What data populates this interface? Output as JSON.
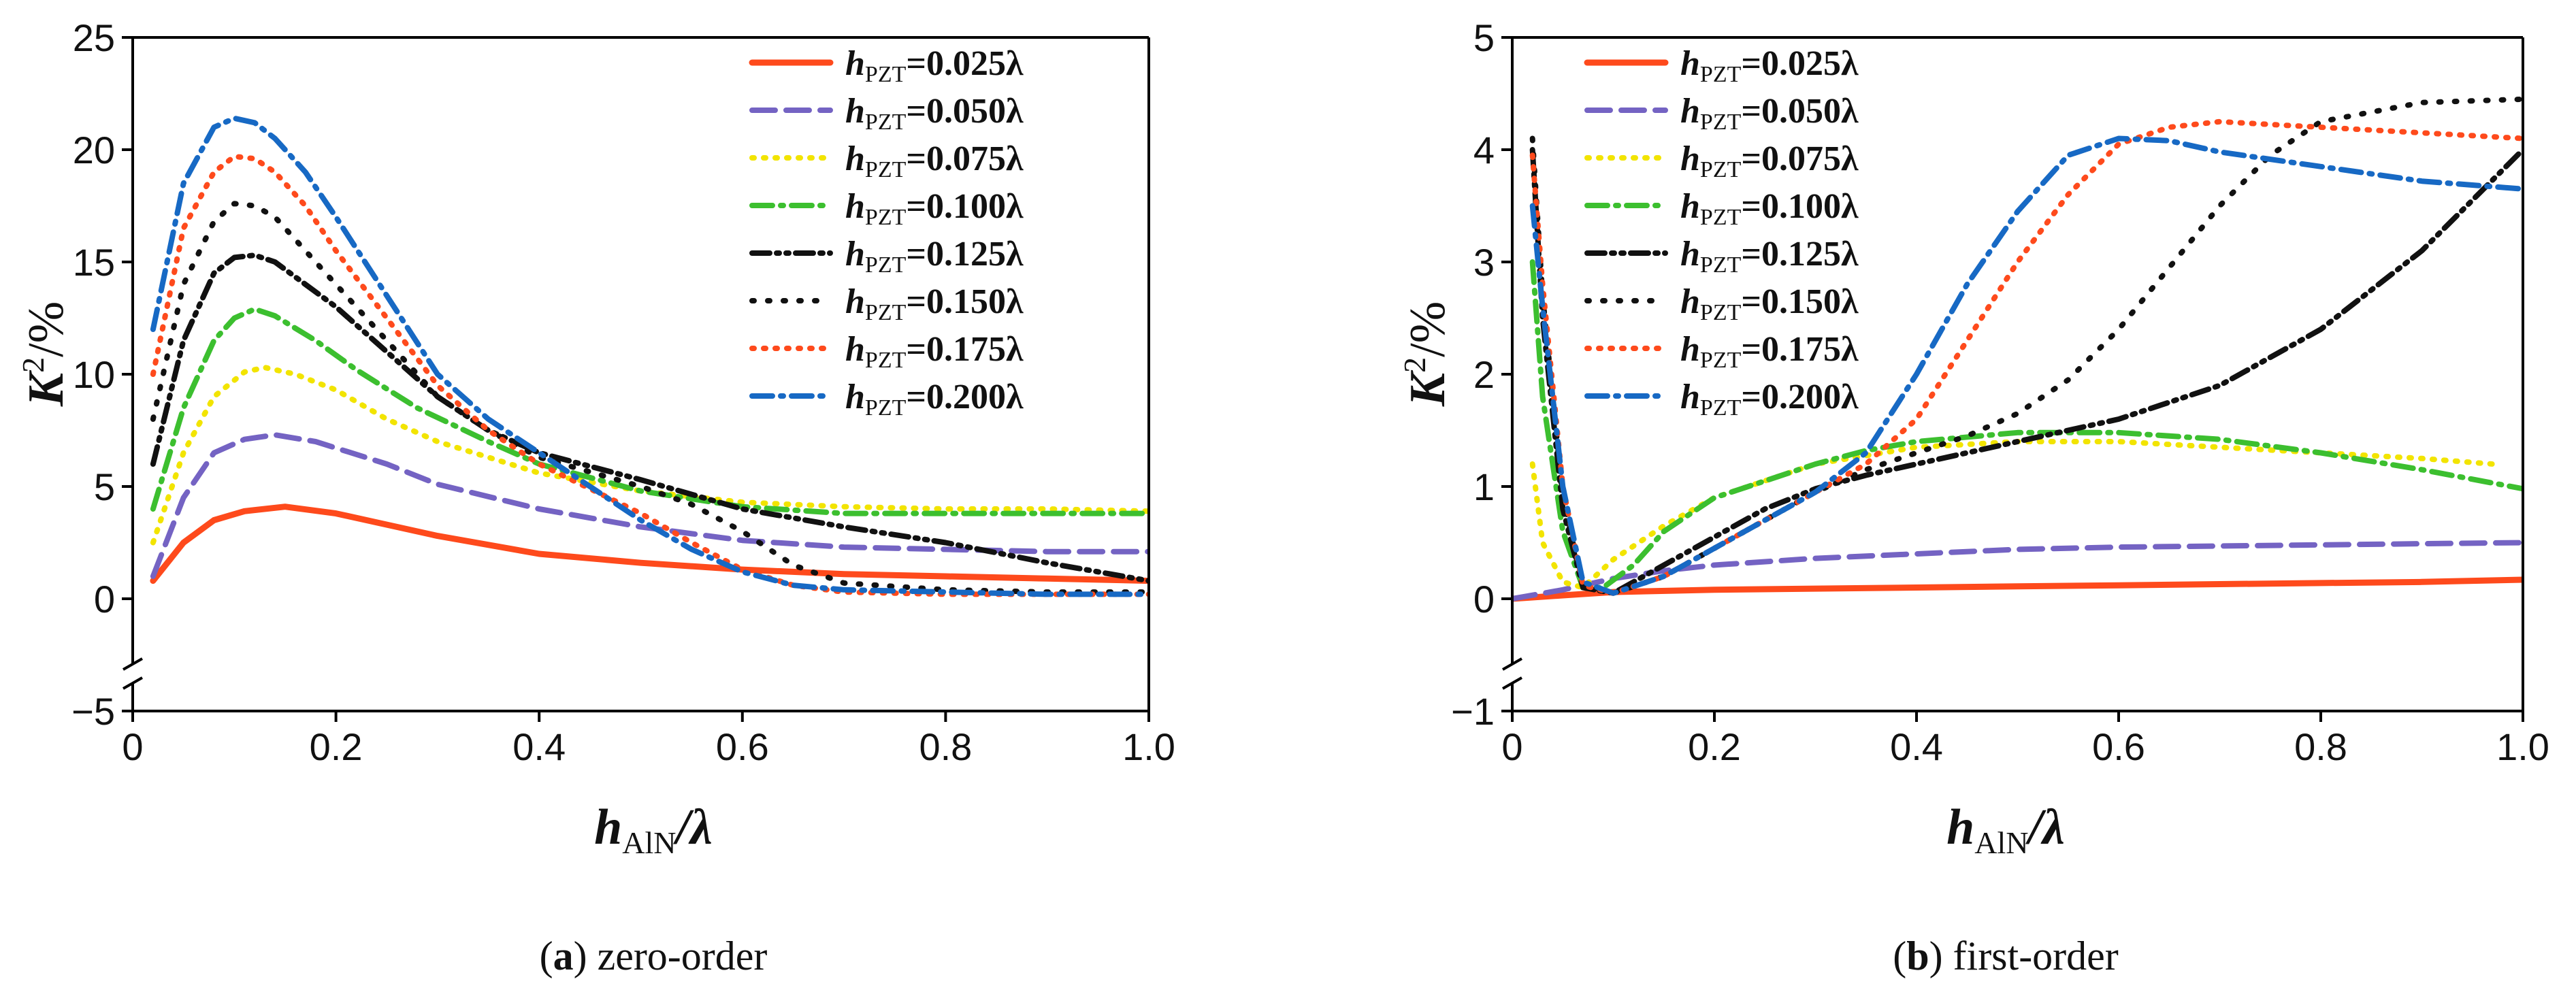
{
  "colors": {
    "c025": "#fe4a1c",
    "c050": "#7463c3",
    "c075": "#f2e400",
    "c100": "#3cbf2f",
    "c125": "#111111",
    "c150": "#111111",
    "c175": "#fe4a1c",
    "c200": "#1769c4"
  },
  "chart_data": [
    {
      "panel": "a",
      "type": "line",
      "caption_letter": "a",
      "caption_text": "zero-order",
      "xlabel_main": "h",
      "xlabel_sub": "AlN",
      "xlabel_tail": "/λ",
      "ylabel_main": "K",
      "ylabel_sup": "2",
      "ylabel_tail": "/%",
      "xlim": [
        0,
        1.0
      ],
      "ylim": [
        -5,
        25
      ],
      "xticks": [
        {
          "v": 0,
          "label": "0"
        },
        {
          "v": 0.2,
          "label": "0.2"
        },
        {
          "v": 0.4,
          "label": "0.4"
        },
        {
          "v": 0.6,
          "label": "0.6"
        },
        {
          "v": 0.8,
          "label": "0.8"
        },
        {
          "v": 1.0,
          "label": "1.0"
        }
      ],
      "yticks": [
        {
          "v": -5,
          "label": "−5"
        },
        {
          "v": 0,
          "label": "0"
        },
        {
          "v": 5,
          "label": "5"
        },
        {
          "v": 10,
          "label": "10"
        },
        {
          "v": 15,
          "label": "15"
        },
        {
          "v": 20,
          "label": "20"
        },
        {
          "v": 25,
          "label": "25"
        }
      ],
      "legend_position": "top-right",
      "series": [
        {
          "key": "h025",
          "name_main": "h",
          "name_sub": "PZT",
          "name_val": "=0.025λ",
          "color": "c025",
          "style": "solid",
          "x": [
            0.02,
            0.05,
            0.08,
            0.11,
            0.15,
            0.2,
            0.3,
            0.4,
            0.5,
            0.6,
            0.7,
            0.8,
            0.9,
            1.0
          ],
          "y": [
            0.8,
            2.5,
            3.5,
            3.9,
            4.1,
            3.8,
            2.8,
            2.0,
            1.6,
            1.3,
            1.1,
            1.0,
            0.9,
            0.8
          ]
        },
        {
          "key": "h050",
          "name_main": "h",
          "name_sub": "PZT",
          "name_val": "=0.050λ",
          "color": "c050",
          "style": "dashed",
          "x": [
            0.02,
            0.05,
            0.08,
            0.11,
            0.14,
            0.18,
            0.25,
            0.3,
            0.4,
            0.5,
            0.6,
            0.7,
            0.8,
            0.9,
            1.0
          ],
          "y": [
            1.0,
            4.5,
            6.5,
            7.1,
            7.3,
            7.0,
            6.0,
            5.1,
            4.0,
            3.2,
            2.6,
            2.3,
            2.2,
            2.1,
            2.1
          ]
        },
        {
          "key": "h075",
          "name_main": "h",
          "name_sub": "PZT",
          "name_val": "=0.075λ",
          "color": "c075",
          "style": "dotted",
          "x": [
            0.02,
            0.05,
            0.08,
            0.11,
            0.13,
            0.16,
            0.2,
            0.25,
            0.3,
            0.4,
            0.5,
            0.6,
            0.7,
            0.8,
            0.9,
            1.0
          ],
          "y": [
            2.5,
            6.5,
            9.0,
            10.1,
            10.3,
            10.0,
            9.3,
            8.0,
            7.0,
            5.6,
            4.8,
            4.3,
            4.1,
            4.0,
            4.0,
            3.9
          ]
        },
        {
          "key": "h100",
          "name_main": "h",
          "name_sub": "PZT",
          "name_val": "=0.100λ",
          "color": "c100",
          "style": "dashdot",
          "x": [
            0.02,
            0.05,
            0.08,
            0.1,
            0.12,
            0.14,
            0.18,
            0.22,
            0.28,
            0.35,
            0.4,
            0.5,
            0.6,
            0.7,
            0.8,
            0.9,
            1.0
          ],
          "y": [
            4.0,
            8.5,
            11.5,
            12.5,
            12.9,
            12.6,
            11.5,
            10.2,
            8.5,
            7.0,
            6.0,
            4.8,
            4.1,
            3.8,
            3.8,
            3.8,
            3.8
          ]
        },
        {
          "key": "h125",
          "name_main": "h",
          "name_sub": "PZT",
          "name_val": "=0.125λ",
          "color": "c125",
          "style": "dashdotdot",
          "x": [
            0.02,
            0.05,
            0.08,
            0.1,
            0.12,
            0.14,
            0.17,
            0.2,
            0.25,
            0.3,
            0.35,
            0.4,
            0.5,
            0.6,
            0.7,
            0.8,
            0.9,
            1.0
          ],
          "y": [
            6.0,
            11.5,
            14.5,
            15.2,
            15.3,
            15.0,
            14.0,
            13.0,
            11.0,
            9.0,
            7.5,
            6.5,
            5.3,
            4.0,
            3.2,
            2.5,
            1.6,
            0.8
          ]
        },
        {
          "key": "h150",
          "name_main": "h",
          "name_sub": "PZT",
          "name_val": "=0.150λ",
          "color": "c150",
          "style": "sparse-dotted",
          "x": [
            0.02,
            0.05,
            0.08,
            0.1,
            0.12,
            0.14,
            0.17,
            0.2,
            0.25,
            0.3,
            0.35,
            0.4,
            0.5,
            0.55,
            0.6,
            0.65,
            0.7,
            0.8,
            0.9,
            1.0
          ],
          "y": [
            8.0,
            14.0,
            16.8,
            17.6,
            17.5,
            17.0,
            15.5,
            14.0,
            11.5,
            9.0,
            7.5,
            6.3,
            5.0,
            4.2,
            3.0,
            1.5,
            0.7,
            0.4,
            0.3,
            0.3
          ]
        },
        {
          "key": "h175",
          "name_main": "h",
          "name_sub": "PZT",
          "name_val": "=0.175λ",
          "color": "c175",
          "style": "dotted",
          "x": [
            0.02,
            0.05,
            0.08,
            0.1,
            0.12,
            0.14,
            0.17,
            0.2,
            0.25,
            0.3,
            0.35,
            0.4,
            0.5,
            0.55,
            0.6,
            0.65,
            0.7,
            0.8,
            0.9,
            1.0
          ],
          "y": [
            10.0,
            16.5,
            19.0,
            19.7,
            19.6,
            19.0,
            17.5,
            15.5,
            12.5,
            9.5,
            7.5,
            6.0,
            3.8,
            2.5,
            1.3,
            0.6,
            0.3,
            0.2,
            0.2,
            0.2
          ]
        },
        {
          "key": "h200",
          "name_main": "h",
          "name_sub": "PZT",
          "name_val": "=0.200λ",
          "color": "c200",
          "style": "dashdot",
          "x": [
            0.02,
            0.05,
            0.08,
            0.1,
            0.12,
            0.14,
            0.17,
            0.2,
            0.25,
            0.3,
            0.35,
            0.4,
            0.45,
            0.5,
            0.55,
            0.6,
            0.65,
            0.7,
            0.8,
            0.9,
            1.0
          ],
          "y": [
            12.0,
            18.5,
            21.0,
            21.4,
            21.2,
            20.5,
            19.0,
            17.0,
            13.5,
            10.0,
            8.0,
            6.5,
            5.0,
            3.5,
            2.2,
            1.2,
            0.6,
            0.4,
            0.3,
            0.2,
            0.2
          ]
        }
      ]
    },
    {
      "panel": "b",
      "type": "line",
      "caption_letter": "b",
      "caption_text": "first-order",
      "xlabel_main": "h",
      "xlabel_sub": "AlN",
      "xlabel_tail": "/λ",
      "ylabel_main": "K",
      "ylabel_sup": "2",
      "ylabel_tail": "/%",
      "xlim": [
        0,
        1.0
      ],
      "ylim": [
        -1,
        5
      ],
      "xticks": [
        {
          "v": 0,
          "label": "0"
        },
        {
          "v": 0.2,
          "label": "0.2"
        },
        {
          "v": 0.4,
          "label": "0.4"
        },
        {
          "v": 0.6,
          "label": "0.6"
        },
        {
          "v": 0.8,
          "label": "0.8"
        },
        {
          "v": 1.0,
          "label": "1.0"
        }
      ],
      "yticks": [
        {
          "v": -1,
          "label": "−1"
        },
        {
          "v": 0,
          "label": "0"
        },
        {
          "v": 1,
          "label": "1"
        },
        {
          "v": 2,
          "label": "2"
        },
        {
          "v": 3,
          "label": "3"
        },
        {
          "v": 4,
          "label": "4"
        },
        {
          "v": 5,
          "label": "5"
        }
      ],
      "legend_position": "top-left",
      "series": [
        {
          "key": "h025",
          "name_main": "h",
          "name_sub": "PZT",
          "name_val": "=0.025λ",
          "color": "c025",
          "style": "solid",
          "x": [
            0.0,
            0.05,
            0.1,
            0.2,
            0.3,
            0.4,
            0.5,
            0.6,
            0.7,
            0.8,
            0.9,
            1.0
          ],
          "y": [
            0.0,
            0.03,
            0.06,
            0.08,
            0.09,
            0.1,
            0.11,
            0.12,
            0.13,
            0.14,
            0.15,
            0.17
          ]
        },
        {
          "key": "h050",
          "name_main": "h",
          "name_sub": "PZT",
          "name_val": "=0.050λ",
          "color": "c050",
          "style": "dashed",
          "x": [
            0.0,
            0.05,
            0.1,
            0.15,
            0.2,
            0.3,
            0.4,
            0.5,
            0.6,
            0.7,
            0.8,
            0.9,
            1.0
          ],
          "y": [
            0.0,
            0.08,
            0.18,
            0.25,
            0.3,
            0.36,
            0.4,
            0.44,
            0.46,
            0.47,
            0.48,
            0.49,
            0.5
          ]
        },
        {
          "key": "h075",
          "name_main": "h",
          "name_sub": "PZT",
          "name_val": "=0.075λ",
          "color": "c075",
          "style": "dotted",
          "x": [
            0.02,
            0.03,
            0.05,
            0.07,
            0.1,
            0.15,
            0.2,
            0.3,
            0.4,
            0.5,
            0.6,
            0.7,
            0.8,
            0.9,
            0.97
          ],
          "y": [
            1.2,
            0.5,
            0.15,
            0.1,
            0.35,
            0.65,
            0.9,
            1.2,
            1.35,
            1.4,
            1.4,
            1.35,
            1.3,
            1.25,
            1.2
          ]
        },
        {
          "key": "h100",
          "name_main": "h",
          "name_sub": "PZT",
          "name_val": "=0.100λ",
          "color": "c100",
          "style": "dashdot",
          "x": [
            0.02,
            0.03,
            0.05,
            0.07,
            0.09,
            0.12,
            0.15,
            0.2,
            0.25,
            0.3,
            0.35,
            0.4,
            0.5,
            0.6,
            0.7,
            0.8,
            0.9,
            1.0
          ],
          "y": [
            3.0,
            1.8,
            0.6,
            0.1,
            0.1,
            0.3,
            0.6,
            0.9,
            1.05,
            1.2,
            1.32,
            1.4,
            1.48,
            1.48,
            1.42,
            1.3,
            1.15,
            0.98
          ]
        },
        {
          "key": "h125",
          "name_main": "h",
          "name_sub": "PZT",
          "name_val": "=0.125λ",
          "color": "c125",
          "style": "dashdotdot",
          "x": [
            0.02,
            0.03,
            0.05,
            0.07,
            0.1,
            0.15,
            0.2,
            0.25,
            0.3,
            0.35,
            0.4,
            0.5,
            0.6,
            0.7,
            0.8,
            0.9,
            1.0
          ],
          "y": [
            4.0,
            2.5,
            0.8,
            0.1,
            0.05,
            0.3,
            0.55,
            0.8,
            0.98,
            1.1,
            1.2,
            1.4,
            1.6,
            1.9,
            2.4,
            3.1,
            4.0
          ]
        },
        {
          "key": "h150",
          "name_main": "h",
          "name_sub": "PZT",
          "name_val": "=0.150λ",
          "color": "c150",
          "style": "sparse-dotted",
          "x": [
            0.02,
            0.03,
            0.05,
            0.07,
            0.1,
            0.15,
            0.2,
            0.25,
            0.3,
            0.35,
            0.4,
            0.45,
            0.5,
            0.55,
            0.6,
            0.65,
            0.7,
            0.75,
            0.8,
            0.9,
            1.0
          ],
          "y": [
            4.1,
            2.7,
            0.9,
            0.1,
            0.05,
            0.2,
            0.45,
            0.7,
            0.95,
            1.15,
            1.3,
            1.45,
            1.65,
            1.95,
            2.4,
            2.95,
            3.5,
            3.95,
            4.25,
            4.42,
            4.45
          ]
        },
        {
          "key": "h175",
          "name_main": "h",
          "name_sub": "PZT",
          "name_val": "=0.175λ",
          "color": "c175",
          "style": "dotted",
          "x": [
            0.02,
            0.03,
            0.05,
            0.07,
            0.1,
            0.15,
            0.2,
            0.25,
            0.3,
            0.35,
            0.4,
            0.45,
            0.5,
            0.55,
            0.6,
            0.65,
            0.7,
            0.8,
            0.9,
            1.0
          ],
          "y": [
            3.95,
            2.8,
            1.0,
            0.12,
            0.05,
            0.2,
            0.45,
            0.7,
            0.95,
            1.2,
            1.6,
            2.3,
            3.0,
            3.6,
            4.05,
            4.2,
            4.25,
            4.2,
            4.15,
            4.1
          ]
        },
        {
          "key": "h200",
          "name_main": "h",
          "name_sub": "PZT",
          "name_val": "=0.200λ",
          "color": "c200",
          "style": "dashdot",
          "x": [
            0.02,
            0.03,
            0.05,
            0.07,
            0.1,
            0.15,
            0.2,
            0.25,
            0.3,
            0.35,
            0.4,
            0.45,
            0.5,
            0.55,
            0.6,
            0.65,
            0.7,
            0.8,
            0.9,
            1.0
          ],
          "y": [
            3.5,
            2.6,
            1.0,
            0.15,
            0.05,
            0.2,
            0.45,
            0.7,
            0.95,
            1.3,
            2.0,
            2.8,
            3.45,
            3.95,
            4.1,
            4.08,
            3.98,
            3.85,
            3.72,
            3.65
          ]
        }
      ]
    }
  ]
}
